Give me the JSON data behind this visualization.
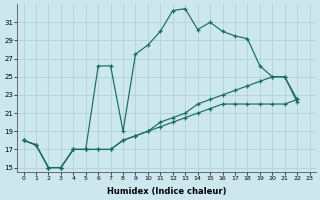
{
  "xlabel": "Humidex (Indice chaleur)",
  "bg_color": "#cce8ee",
  "grid_color": "#aacdd8",
  "line_color": "#1a6b60",
  "xlim": [
    -0.5,
    23.5
  ],
  "ylim": [
    14.5,
    33
  ],
  "xticks": [
    0,
    1,
    2,
    3,
    4,
    5,
    6,
    7,
    8,
    9,
    10,
    11,
    12,
    13,
    14,
    15,
    16,
    17,
    18,
    19,
    20,
    21,
    22,
    23
  ],
  "yticks": [
    15,
    17,
    19,
    21,
    23,
    25,
    27,
    29,
    31
  ],
  "line1_x": [
    0,
    1,
    2,
    3,
    4,
    5,
    6,
    7,
    8,
    9,
    10,
    11,
    12,
    13,
    14,
    15,
    16,
    17,
    18,
    19,
    20,
    21,
    22
  ],
  "line1_y": [
    18,
    17.5,
    15,
    15,
    17,
    17,
    26.2,
    26.2,
    19,
    27.5,
    28.5,
    30,
    32.3,
    32.5,
    30.2,
    31,
    30,
    29.5,
    29.2,
    26.2,
    25,
    25,
    22.2
  ],
  "line2_x": [
    0,
    1,
    2,
    3,
    4,
    5,
    6,
    7,
    8,
    9,
    10,
    11,
    12,
    13,
    14,
    15,
    16,
    17,
    18,
    19,
    20,
    21,
    22
  ],
  "line2_y": [
    18,
    17.5,
    15,
    15,
    17,
    17,
    17,
    17,
    18,
    18.5,
    19,
    20,
    20.5,
    21,
    22,
    22.5,
    23,
    23.5,
    24,
    24.5,
    25,
    25,
    22.5
  ],
  "line3_x": [
    0,
    1,
    2,
    3,
    4,
    5,
    6,
    7,
    8,
    9,
    10,
    11,
    12,
    13,
    14,
    15,
    16,
    17,
    18,
    19,
    20,
    21,
    22
  ],
  "line3_y": [
    18,
    17.5,
    15,
    15,
    17,
    17,
    17,
    17,
    18,
    18.5,
    19,
    19.5,
    20,
    20.5,
    21,
    21.5,
    22,
    22,
    22,
    22,
    22,
    22,
    22.5
  ]
}
